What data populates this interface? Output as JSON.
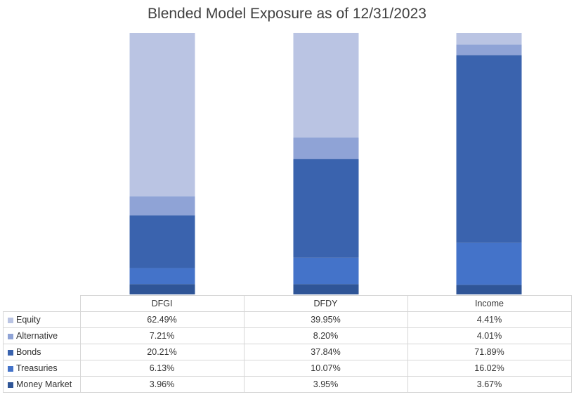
{
  "chart_data": {
    "type": "bar",
    "stacked": true,
    "title": "Blended Model Exposure as of 12/31/2023",
    "categories": [
      "DFGI",
      "DFDY",
      "Income"
    ],
    "series": [
      {
        "name": "Equity",
        "color": "#bac4e3",
        "values": [
          62.49,
          39.95,
          4.41
        ],
        "labels": [
          "62.49%",
          "39.95%",
          "4.41%"
        ]
      },
      {
        "name": "Alternative",
        "color": "#8fa3d6",
        "values": [
          7.21,
          8.2,
          4.01
        ],
        "labels": [
          "7.21%",
          "8.20%",
          "4.01%"
        ]
      },
      {
        "name": "Bonds",
        "color": "#3a63ae",
        "values": [
          20.21,
          37.84,
          71.89
        ],
        "labels": [
          "20.21%",
          "37.84%",
          "71.89%"
        ]
      },
      {
        "name": "Treasuries",
        "color": "#4473c9",
        "values": [
          6.13,
          10.07,
          16.02
        ],
        "labels": [
          "6.13%",
          "10.07%",
          "16.02%"
        ]
      },
      {
        "name": "Money Market",
        "color": "#2f5597",
        "values": [
          3.96,
          3.95,
          3.67
        ],
        "labels": [
          "3.96%",
          "3.95%",
          "3.67%"
        ]
      }
    ],
    "ylim": [
      0,
      100
    ],
    "grid": false,
    "legend": "table"
  }
}
